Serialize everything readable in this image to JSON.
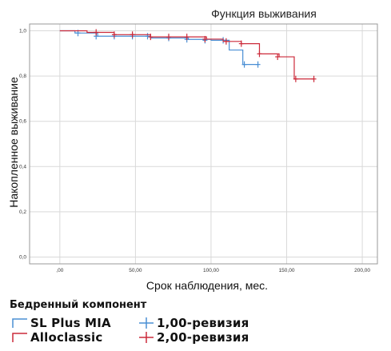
{
  "chart_data": {
    "type": "line",
    "title": "Функция выживания",
    "xlabel": "Срок наблюдения, мес.",
    "ylabel": "Накопленное выживание",
    "xlim": [
      -20,
      210
    ],
    "ylim": [
      -0.03,
      1.03
    ],
    "x_ticks": [
      0,
      50,
      100,
      150,
      200
    ],
    "x_tick_labels": [
      ",00",
      "50,00",
      "100,00",
      "150,00",
      "200,00"
    ],
    "y_ticks": [
      0,
      0.2,
      0.4,
      0.6,
      0.8,
      1.0
    ],
    "y_tick_labels": [
      "0,0",
      "0,2",
      "0,4",
      "0,6",
      "0,8",
      "1,0"
    ],
    "grid": true,
    "legend_title": "Бедренный компонент",
    "series": [
      {
        "name": "SL Plus MIA",
        "color": "#4a8fd4",
        "step": [
          [
            0,
            1.0
          ],
          [
            10,
            0.99
          ],
          [
            25,
            0.976
          ],
          [
            60,
            0.968
          ],
          [
            85,
            0.962
          ],
          [
            100,
            0.958
          ],
          [
            112,
            0.915
          ],
          [
            121,
            0.851
          ],
          [
            131,
            0.851
          ]
        ],
        "censored": [
          [
            12,
            0.99
          ],
          [
            24,
            0.976
          ],
          [
            36,
            0.976
          ],
          [
            48,
            0.976
          ],
          [
            58,
            0.976
          ],
          [
            72,
            0.968
          ],
          [
            84,
            0.962
          ],
          [
            96,
            0.958
          ],
          [
            108,
            0.958
          ],
          [
            122,
            0.851
          ],
          [
            131,
            0.851
          ]
        ]
      },
      {
        "name": "Alloclassic",
        "color": "#cc2a3a",
        "step": [
          [
            0,
            1.0
          ],
          [
            18,
            0.993
          ],
          [
            36,
            0.983
          ],
          [
            60,
            0.973
          ],
          [
            97,
            0.963
          ],
          [
            108,
            0.953
          ],
          [
            120,
            0.943
          ],
          [
            132,
            0.898
          ],
          [
            145,
            0.885
          ],
          [
            155,
            0.787
          ],
          [
            168,
            0.787
          ]
        ],
        "censored": [
          [
            24,
            0.993
          ],
          [
            36,
            0.983
          ],
          [
            48,
            0.983
          ],
          [
            60,
            0.973
          ],
          [
            72,
            0.973
          ],
          [
            84,
            0.973
          ],
          [
            96,
            0.963
          ],
          [
            110,
            0.953
          ],
          [
            120,
            0.943
          ],
          [
            132,
            0.898
          ],
          [
            144,
            0.885
          ],
          [
            156,
            0.787
          ],
          [
            168,
            0.787
          ]
        ]
      }
    ],
    "legend_entries": [
      {
        "label": "SL Plus MIA",
        "kind": "line",
        "color": "#4a8fd4"
      },
      {
        "label": "1,00-ревизия",
        "kind": "censor",
        "color": "#4a8fd4"
      },
      {
        "label": "Alloclassic",
        "kind": "line",
        "color": "#cc2a3a"
      },
      {
        "label": "2,00-ревизия",
        "kind": "censor",
        "color": "#cc2a3a"
      }
    ]
  }
}
